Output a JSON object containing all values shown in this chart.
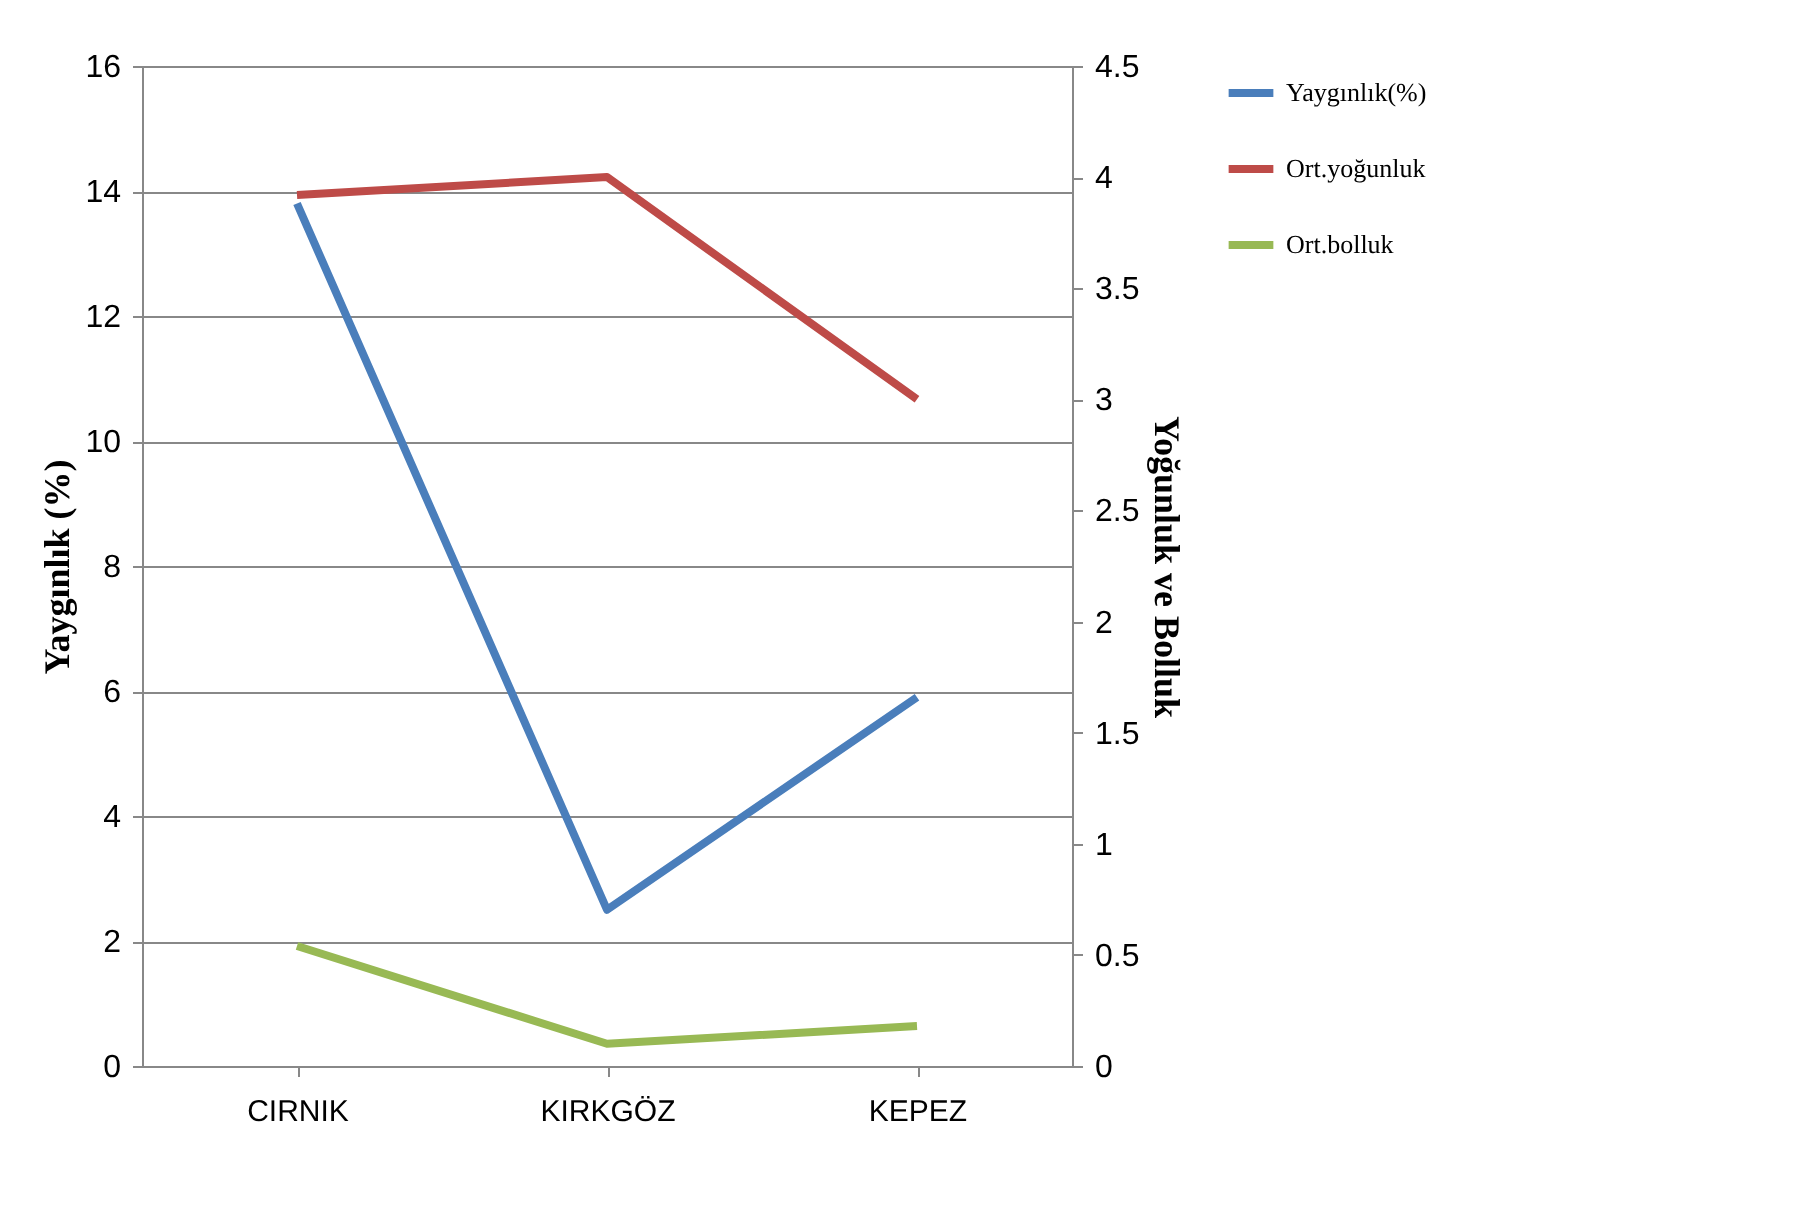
{
  "chart_data": {
    "type": "line",
    "categories": [
      "CIRNIK",
      "KIRKGÖZ",
      "KEPEZ"
    ],
    "series": [
      {
        "name": "Yaygınlık(%)",
        "color": "#4a7ebb",
        "values": [
          13.8,
          2.5,
          5.9
        ]
      },
      {
        "name": "Ort.yoğunluk",
        "color": "#be4b48",
        "values": [
          3.92,
          4.0,
          3.0
        ],
        "axis": "y2"
      },
      {
        "name": "Ort.bolluk",
        "color": "#98b954",
        "values": [
          0.54,
          0.1,
          0.18
        ],
        "axis": "y2"
      }
    ],
    "ylabel": "Yaygınlık (%)",
    "y2label": "Yoğunluk ve  Bolluk",
    "ylim": [
      0,
      16
    ],
    "yticks": [
      0,
      2,
      4,
      6,
      8,
      10,
      12,
      14,
      16
    ],
    "y2lim": [
      0,
      4.5
    ],
    "y2ticks": [
      0,
      0.5,
      1,
      1.5,
      2,
      2.5,
      3,
      3.5,
      4,
      4.5
    ],
    "grid": "y",
    "legend": "top right",
    "marker": "none",
    "line_style": "solid"
  }
}
